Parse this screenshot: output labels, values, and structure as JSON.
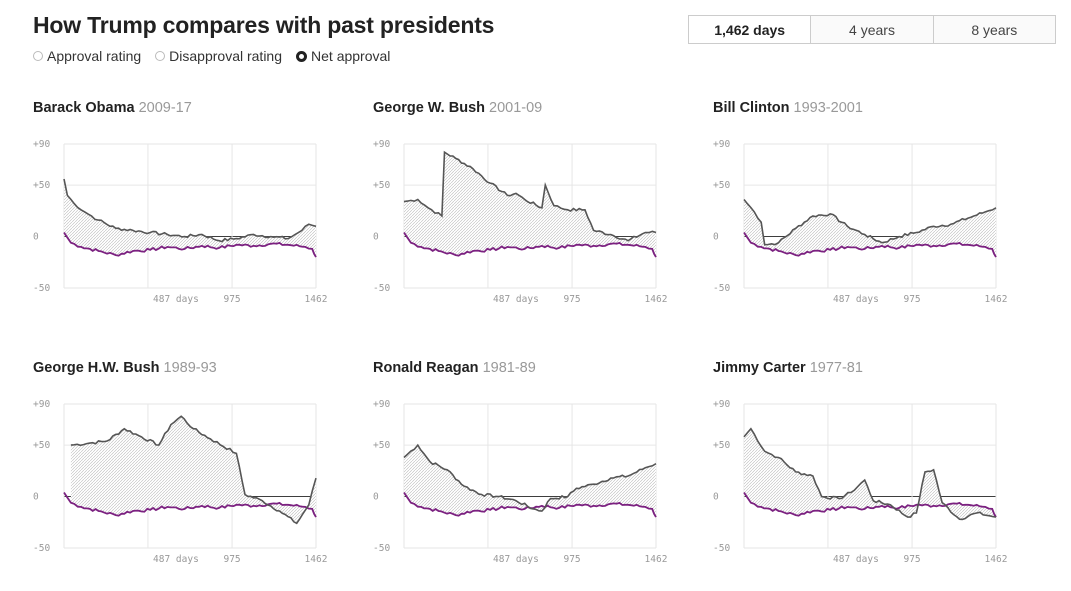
{
  "header": {
    "title": "How Trump compares with past presidents",
    "radios": [
      {
        "label": "Approval rating",
        "selected": false
      },
      {
        "label": "Disapproval rating",
        "selected": false
      },
      {
        "label": "Net approval",
        "selected": true
      }
    ],
    "tabs": [
      {
        "label": "1,462 days",
        "active": true
      },
      {
        "label": "4 years",
        "active": false
      },
      {
        "label": "8 years",
        "active": false
      }
    ]
  },
  "colors": {
    "president": "#555555",
    "trump": "#7b2180",
    "fill": "#cccccc",
    "zero": "#222222",
    "grid": "#e6e6e6"
  },
  "chart_data": [
    {
      "type": "line",
      "name": "Barack Obama",
      "years": "2009-17",
      "ylim": [
        -50,
        90
      ],
      "xlim": [
        0,
        1462
      ],
      "yticks": [
        "+90",
        "+50",
        "0",
        "-50"
      ],
      "xticks": [
        "487 days",
        "975",
        "1462"
      ],
      "president": [
        [
          0,
          56
        ],
        [
          20,
          40
        ],
        [
          60,
          32
        ],
        [
          120,
          24
        ],
        [
          200,
          16
        ],
        [
          300,
          8
        ],
        [
          400,
          6
        ],
        [
          500,
          4
        ],
        [
          600,
          2
        ],
        [
          700,
          0
        ],
        [
          800,
          2
        ],
        [
          900,
          -4
        ],
        [
          1000,
          -2
        ],
        [
          1100,
          2
        ],
        [
          1200,
          0
        ],
        [
          1300,
          -2
        ],
        [
          1380,
          6
        ],
        [
          1420,
          12
        ],
        [
          1462,
          10
        ]
      ]
    },
    {
      "type": "line",
      "name": "George W. Bush",
      "years": "2001-09",
      "ylim": [
        -50,
        90
      ],
      "xlim": [
        0,
        1462
      ],
      "yticks": [
        "+90",
        "+50",
        "0",
        "-50"
      ],
      "xticks": [
        "487 days",
        "975",
        "1462"
      ],
      "president": [
        [
          0,
          34
        ],
        [
          80,
          36
        ],
        [
          140,
          28
        ],
        [
          220,
          20
        ],
        [
          235,
          82
        ],
        [
          300,
          76
        ],
        [
          400,
          66
        ],
        [
          500,
          52
        ],
        [
          600,
          40
        ],
        [
          650,
          42
        ],
        [
          700,
          36
        ],
        [
          800,
          28
        ],
        [
          820,
          50
        ],
        [
          870,
          30
        ],
        [
          950,
          26
        ],
        [
          1050,
          26
        ],
        [
          1100,
          6
        ],
        [
          1200,
          2
        ],
        [
          1300,
          -4
        ],
        [
          1400,
          4
        ],
        [
          1462,
          4
        ]
      ]
    },
    {
      "type": "line",
      "name": "Bill Clinton",
      "years": "1993-2001",
      "ylim": [
        -50,
        90
      ],
      "xlim": [
        0,
        1462
      ],
      "yticks": [
        "+90",
        "+50",
        "0",
        "-50"
      ],
      "xticks": [
        "487 days",
        "975",
        "1462"
      ],
      "president": [
        [
          0,
          36
        ],
        [
          60,
          24
        ],
        [
          100,
          14
        ],
        [
          120,
          -8
        ],
        [
          200,
          -6
        ],
        [
          300,
          8
        ],
        [
          400,
          20
        ],
        [
          500,
          22
        ],
        [
          600,
          10
        ],
        [
          700,
          2
        ],
        [
          800,
          -6
        ],
        [
          900,
          0
        ],
        [
          1000,
          4
        ],
        [
          1100,
          10
        ],
        [
          1200,
          12
        ],
        [
          1300,
          18
        ],
        [
          1400,
          24
        ],
        [
          1462,
          28
        ]
      ]
    },
    {
      "type": "line",
      "name": "George H.W. Bush",
      "years": "1989-93",
      "ylim": [
        -50,
        90
      ],
      "xlim": [
        0,
        1462
      ],
      "yticks": [
        "+90",
        "+50",
        "0",
        "-50"
      ],
      "xticks": [
        "487 days",
        "975",
        "1462"
      ],
      "president": [
        [
          40,
          50
        ],
        [
          150,
          52
        ],
        [
          250,
          54
        ],
        [
          350,
          66
        ],
        [
          450,
          58
        ],
        [
          550,
          50
        ],
        [
          620,
          70
        ],
        [
          680,
          78
        ],
        [
          750,
          66
        ],
        [
          850,
          56
        ],
        [
          1000,
          42
        ],
        [
          1050,
          2
        ],
        [
          1150,
          -4
        ],
        [
          1250,
          -14
        ],
        [
          1350,
          -26
        ],
        [
          1420,
          -8
        ],
        [
          1462,
          18
        ]
      ]
    },
    {
      "type": "line",
      "name": "Ronald Reagan",
      "years": "1981-89",
      "ylim": [
        -50,
        90
      ],
      "xlim": [
        0,
        1462
      ],
      "yticks": [
        "+90",
        "+50",
        "0",
        "-50"
      ],
      "xticks": [
        "487 days",
        "975",
        "1462"
      ],
      "president": [
        [
          0,
          38
        ],
        [
          80,
          50
        ],
        [
          150,
          34
        ],
        [
          250,
          26
        ],
        [
          350,
          10
        ],
        [
          450,
          2
        ],
        [
          550,
          0
        ],
        [
          650,
          -4
        ],
        [
          750,
          -12
        ],
        [
          800,
          -14
        ],
        [
          850,
          -2
        ],
        [
          950,
          0
        ],
        [
          1000,
          8
        ],
        [
          1100,
          12
        ],
        [
          1200,
          18
        ],
        [
          1300,
          20
        ],
        [
          1400,
          28
        ],
        [
          1462,
          32
        ]
      ]
    },
    {
      "type": "line",
      "name": "Jimmy Carter",
      "years": "1977-81",
      "ylim": [
        -50,
        90
      ],
      "xlim": [
        0,
        1462
      ],
      "yticks": [
        "+90",
        "+50",
        "0",
        "-50"
      ],
      "xticks": [
        "487 days",
        "975",
        "1462"
      ],
      "president": [
        [
          0,
          58
        ],
        [
          40,
          66
        ],
        [
          120,
          44
        ],
        [
          200,
          38
        ],
        [
          300,
          24
        ],
        [
          400,
          20
        ],
        [
          450,
          0
        ],
        [
          550,
          -2
        ],
        [
          620,
          4
        ],
        [
          700,
          16
        ],
        [
          750,
          -4
        ],
        [
          850,
          -8
        ],
        [
          950,
          -20
        ],
        [
          1000,
          -16
        ],
        [
          1050,
          24
        ],
        [
          1100,
          26
        ],
        [
          1150,
          -6
        ],
        [
          1250,
          -22
        ],
        [
          1350,
          -16
        ],
        [
          1462,
          -20
        ]
      ]
    }
  ],
  "trump": [
    [
      0,
      4
    ],
    [
      40,
      -6
    ],
    [
      100,
      -10
    ],
    [
      200,
      -14
    ],
    [
      300,
      -18
    ],
    [
      400,
      -14
    ],
    [
      500,
      -13
    ],
    [
      600,
      -10
    ],
    [
      700,
      -12
    ],
    [
      800,
      -9
    ],
    [
      900,
      -11
    ],
    [
      1000,
      -8
    ],
    [
      1100,
      -9
    ],
    [
      1200,
      -7
    ],
    [
      1300,
      -8
    ],
    [
      1400,
      -10
    ],
    [
      1440,
      -12
    ],
    [
      1462,
      -20
    ]
  ]
}
